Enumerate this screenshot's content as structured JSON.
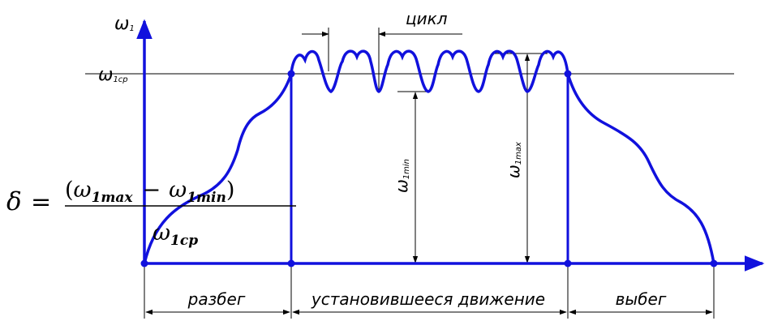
{
  "axis": {
    "y_label": "ω",
    "y_label_sub": "1",
    "mean_label": "ω",
    "mean_label_sub": "1ср"
  },
  "annotations": {
    "cycle": "цикл",
    "omega_min": "ω",
    "omega_min_sub": "1min",
    "omega_max": "ω",
    "omega_max_sub": "1max"
  },
  "phases": {
    "start": "разбег",
    "steady": "установившееся движение",
    "coast": "выбег"
  },
  "formula": {
    "delta": "δ",
    "equals": "=",
    "open_paren": "(",
    "close_paren": ")",
    "minus": "−",
    "omega": "ω",
    "max_sub": "1max",
    "min_sub": "1min",
    "cp_sub": "1cp"
  },
  "colors": {
    "curve": "#1111dd",
    "lines": "#000000"
  }
}
